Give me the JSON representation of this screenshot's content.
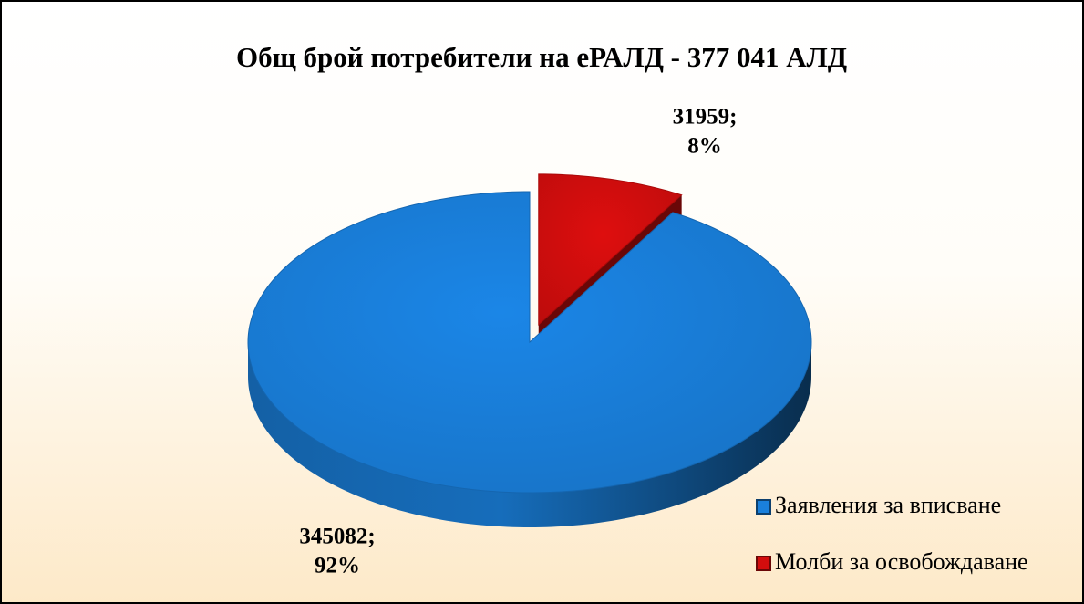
{
  "chart_data": {
    "type": "pie3d",
    "title": "Общ брой потребители на еРАЛД - 377 041 АЛД",
    "categories": [
      "Заявления за вписване",
      "Молби за освобождаване"
    ],
    "values": [
      345082,
      31959
    ],
    "value_labels": [
      [
        "345082;",
        "92%"
      ],
      [
        "31959;",
        "8%"
      ]
    ],
    "colors": [
      "#1a80dc",
      "#d30d0d"
    ],
    "legend": "bottom-right"
  }
}
